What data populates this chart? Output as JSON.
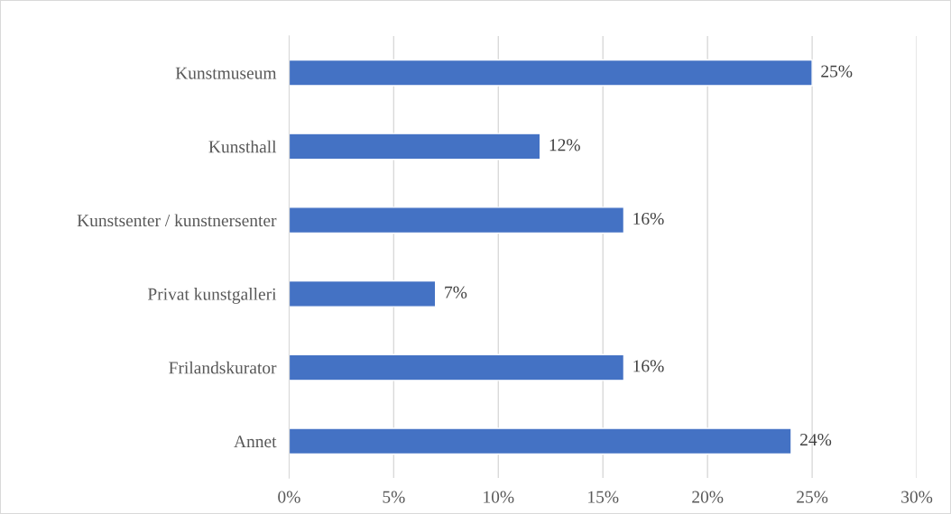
{
  "chart_data": {
    "type": "bar",
    "orientation": "horizontal",
    "categories": [
      "Kunstmuseum",
      "Kunsthall",
      "Kunstsenter / kunstnersenter",
      "Privat kunstgalleri",
      "Frilandskurator",
      "Annet"
    ],
    "values": [
      25,
      12,
      16,
      7,
      16,
      24
    ],
    "value_labels": [
      "25%",
      "12%",
      "16%",
      "7%",
      "16%",
      "24%"
    ],
    "color": "#4472c4",
    "xlim": [
      0,
      30
    ],
    "xticks": [
      {
        "value": 0,
        "label": "0%"
      },
      {
        "value": 5,
        "label": "5%"
      },
      {
        "value": 10,
        "label": "10%"
      },
      {
        "value": 15,
        "label": "15%"
      },
      {
        "value": 20,
        "label": "20%"
      },
      {
        "value": 25,
        "label": "25%"
      },
      {
        "value": 30,
        "label": "30%"
      }
    ],
    "grid": "x"
  }
}
